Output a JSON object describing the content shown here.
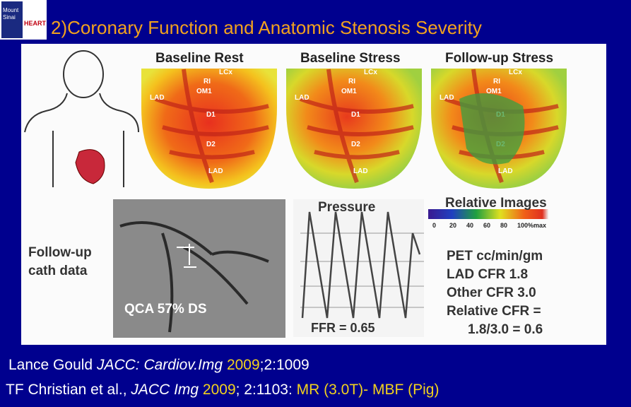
{
  "header": {
    "logo": [
      "Mount",
      "Sinai",
      "HEART"
    ],
    "title": "2)Coronary Function and Anatomic Stenosis Severity"
  },
  "figure": {
    "panels": [
      {
        "title": "Baseline Rest",
        "labels": [
          "LCx",
          "RI",
          "OM1",
          "LAD",
          "D1",
          "D2",
          "LAD"
        ]
      },
      {
        "title": "Baseline Stress",
        "labels": [
          "LCx",
          "RI",
          "OM1",
          "LAD",
          "D1",
          "D2",
          "LAD"
        ]
      },
      {
        "title": "Follow-up Stress",
        "labels": [
          "LCx",
          "RI",
          "OM1",
          "LAD",
          "D1",
          "D2",
          "LAD"
        ]
      }
    ],
    "cath_label": [
      "Follow-up",
      "cath data"
    ],
    "qca": "QCA 57% DS",
    "pressure": {
      "title": "Pressure",
      "ffr": "FFR = 0.65"
    },
    "relative": {
      "title": "Relative Images",
      "scale": [
        "0",
        "20",
        "40",
        "60",
        "80",
        "100%max"
      ]
    },
    "pet": [
      "PET cc/min/gm",
      "LAD CFR 1.8",
      "Other CFR 3.0",
      "Relative CFR =",
      "1.8/3.0 = 0.6"
    ]
  },
  "citations": [
    [
      "Lance Gould ",
      "JACC: Cardiov.Img ",
      "2009",
      ";2:1009"
    ],
    [
      "TF Christian et al., ",
      "JACC Img ",
      "2009",
      "; 2:1103: ",
      "MR (3.0T)- MBF (Pig)"
    ]
  ]
}
